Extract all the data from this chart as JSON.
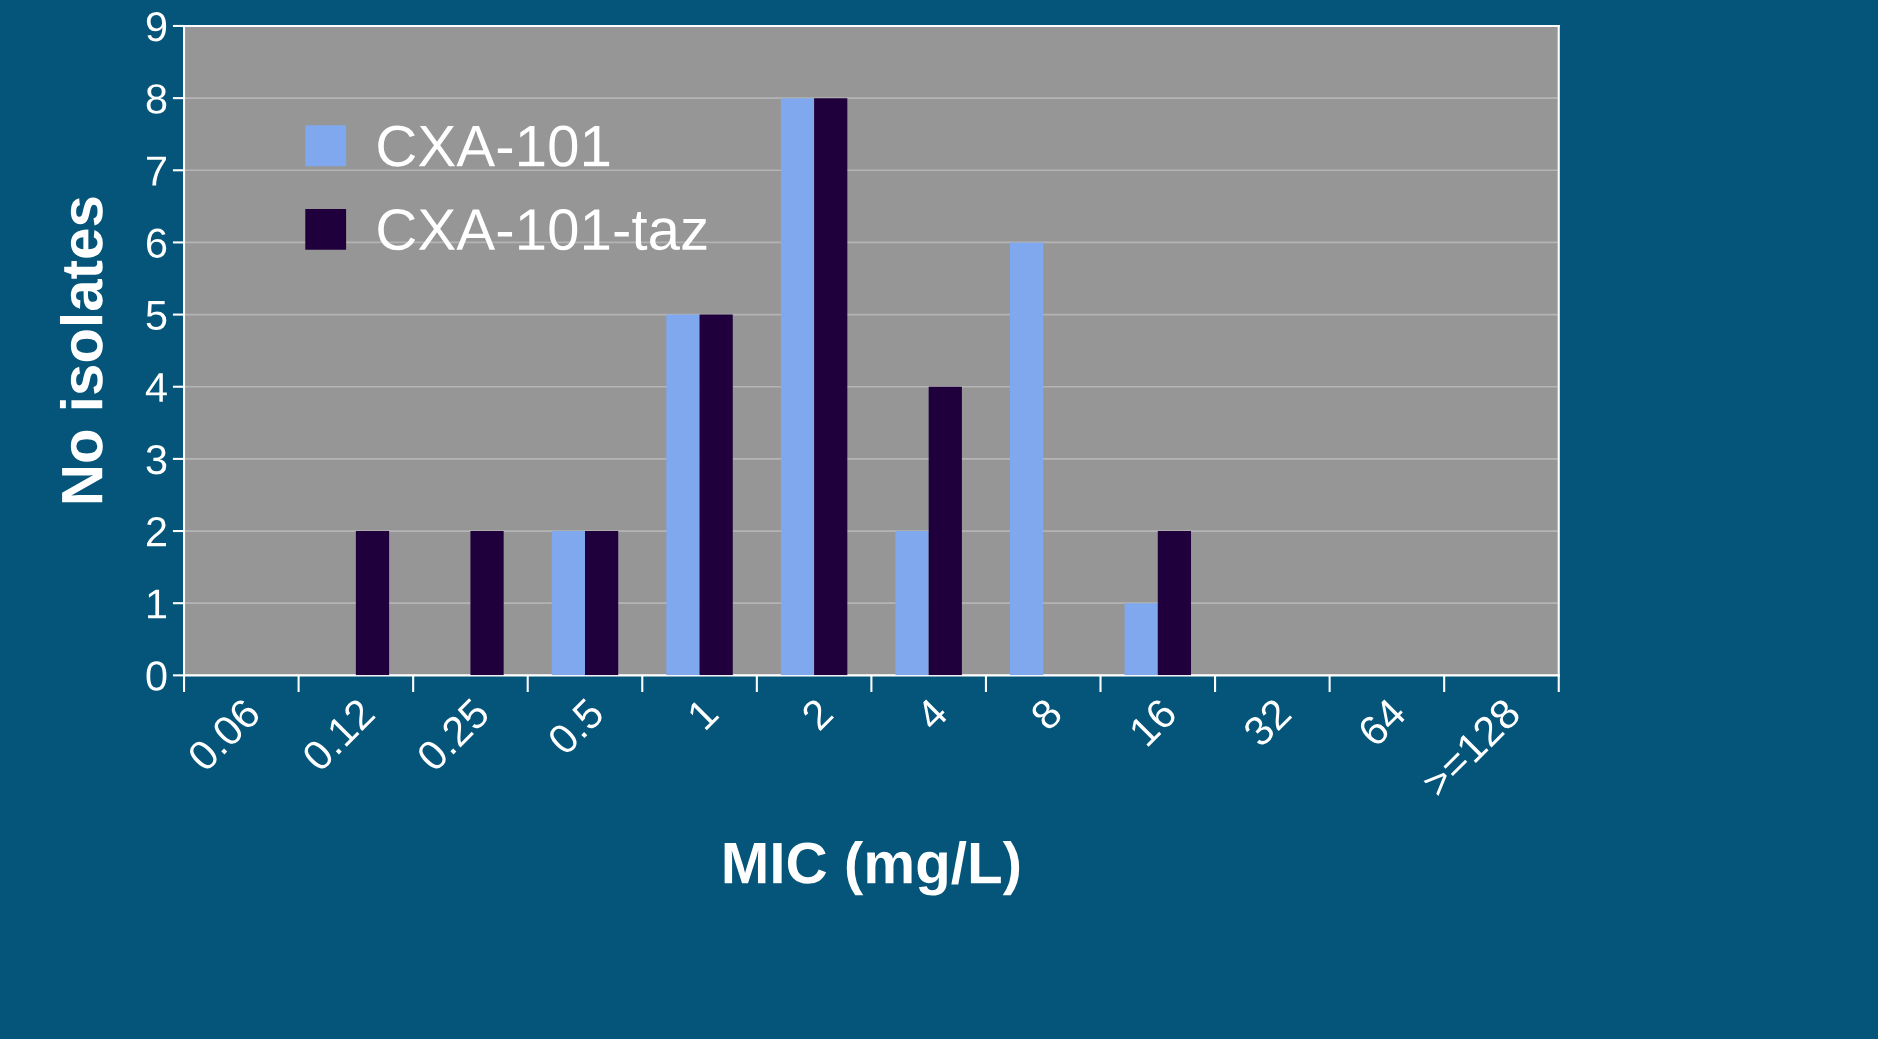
{
  "chart_data": {
    "type": "bar",
    "xlabel": "MIC (mg/L)",
    "ylabel": "No isolates",
    "categories": [
      "0.06",
      "0.12",
      "0.25",
      "0.5",
      "1",
      "2",
      "4",
      "8",
      "16",
      "32",
      "64",
      ">=128"
    ],
    "series": [
      {
        "name": "CXA-101",
        "color": "#7fa8ee",
        "values": [
          0,
          0,
          0,
          2,
          5,
          8,
          2,
          6,
          1,
          0,
          0,
          0
        ]
      },
      {
        "name": "CXA-101-taz",
        "color": "#20003c",
        "values": [
          0,
          2,
          2,
          2,
          5,
          8,
          4,
          0,
          2,
          0,
          0,
          0
        ]
      }
    ],
    "ylim": [
      0,
      9
    ],
    "yticks": [
      0,
      1,
      2,
      3,
      4,
      5,
      6,
      7,
      8,
      9
    ],
    "grid": "y",
    "legend": "top left"
  }
}
